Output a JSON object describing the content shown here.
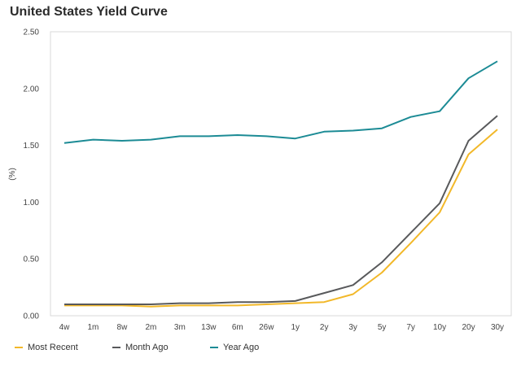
{
  "chart_data": {
    "type": "line",
    "title": "United States Yield Curve",
    "ylabel": "(%)",
    "xlabel": "",
    "ylim": [
      0,
      2.5
    ],
    "yticks": [
      "0.00",
      "0.50",
      "1.00",
      "1.50",
      "2.00",
      "2.50"
    ],
    "categories": [
      "4w",
      "1m",
      "8w",
      "2m",
      "3m",
      "13w",
      "6m",
      "26w",
      "1y",
      "2y",
      "3y",
      "5y",
      "7y",
      "10y",
      "20y",
      "30y"
    ],
    "series": [
      {
        "name": "Most Recent",
        "color": "#f2b829",
        "values": [
          0.09,
          0.09,
          0.09,
          0.08,
          0.09,
          0.09,
          0.09,
          0.1,
          0.11,
          0.12,
          0.19,
          0.38,
          0.64,
          0.91,
          1.42,
          1.64
        ]
      },
      {
        "name": "Month Ago",
        "color": "#58595b",
        "values": [
          0.1,
          0.1,
          0.1,
          0.1,
          0.11,
          0.11,
          0.12,
          0.12,
          0.13,
          0.2,
          0.27,
          0.47,
          0.73,
          0.99,
          1.54,
          1.76
        ]
      },
      {
        "name": "Year Ago",
        "color": "#1c8b95",
        "values": [
          1.52,
          1.55,
          1.54,
          1.55,
          1.58,
          1.58,
          1.59,
          1.58,
          1.56,
          1.62,
          1.63,
          1.65,
          1.75,
          1.8,
          2.09,
          2.24
        ]
      }
    ],
    "grid": false,
    "legend": "bottom"
  }
}
